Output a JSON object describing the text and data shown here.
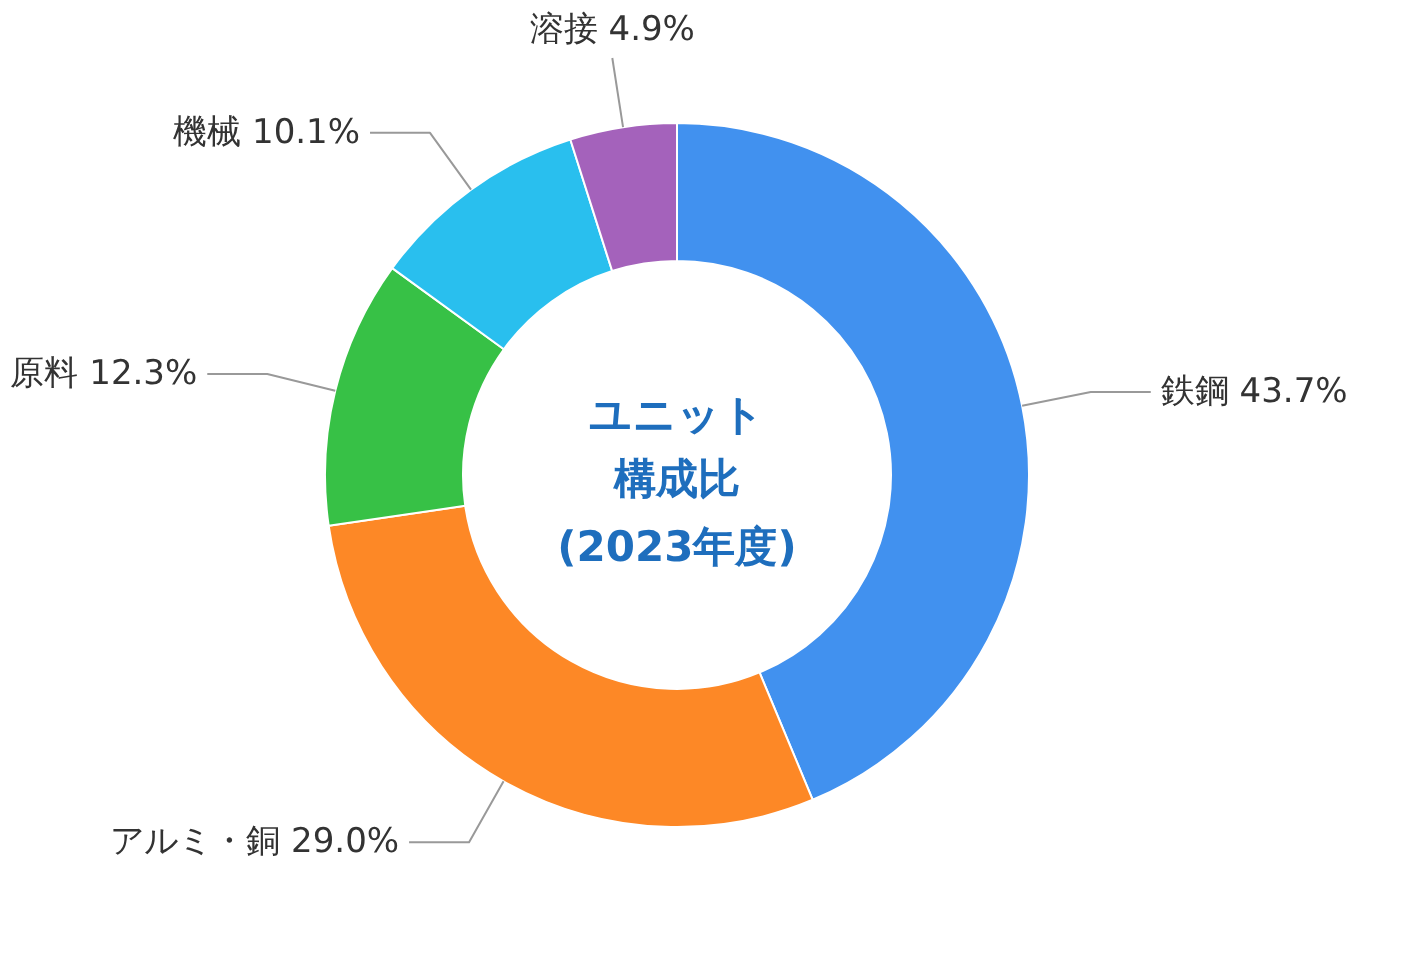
{
  "chart_data": {
    "type": "donut",
    "title": "ユニット構成比",
    "subtitle": "(2023年度)",
    "categories": [
      "鉄鋼",
      "アルミ・銅",
      "原料",
      "機械",
      "溶接"
    ],
    "values": [
      43.7,
      29.0,
      12.3,
      10.1,
      4.9
    ],
    "value_labels": [
      "43.7%",
      "29.0%",
      "12.3%",
      "10.1%",
      "4.9%"
    ],
    "colors": [
      "#4191ef",
      "#fd8826",
      "#37c146",
      "#29bfee",
      "#a462bb"
    ]
  }
}
